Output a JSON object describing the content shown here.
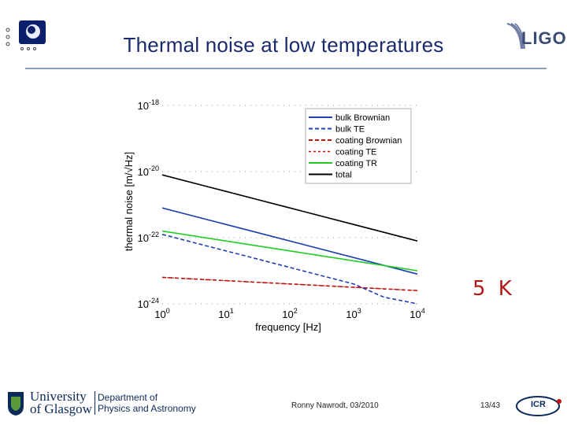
{
  "slide": {
    "title": "Thermal noise at low temperatures",
    "temperature_label": "5 K",
    "author_date": "Ronny Nawrodt, 03/2010",
    "page": "13/43"
  },
  "logos": {
    "ligo": "LIGO",
    "university_line1": "University",
    "university_line2": "of Glasgow",
    "department_line1": "Department of",
    "department_line2": "Physics and Astronomy",
    "icr": "ICR"
  },
  "colors": {
    "title": "#1a2a6c",
    "temperature": "#b01818",
    "bulk_brownian": "#1f3fb0",
    "bulk_te": "#1f3fb0",
    "coating_brownian": "#c01010",
    "coating_te": "#c01010",
    "coating_tr": "#22cc22",
    "total": "#000000"
  },
  "chart_data": {
    "type": "line",
    "xlabel": "frequency [Hz]",
    "ylabel": "thermal noise [m/√Hz]",
    "xscale": "log",
    "yscale": "log",
    "xlim": [
      1,
      10000
    ],
    "ylim_exp": [
      -24,
      -18
    ],
    "xticks": [
      {
        "base": "10",
        "exp": "0",
        "value": 1
      },
      {
        "base": "10",
        "exp": "1",
        "value": 10
      },
      {
        "base": "10",
        "exp": "2",
        "value": 100
      },
      {
        "base": "10",
        "exp": "3",
        "value": 1000
      },
      {
        "base": "10",
        "exp": "4",
        "value": 10000
      }
    ],
    "yticks": [
      {
        "base": "10",
        "exp": "-18",
        "value_exp": -18
      },
      {
        "base": "10",
        "exp": "-20",
        "value_exp": -20
      },
      {
        "base": "10",
        "exp": "-22",
        "value_exp": -22
      },
      {
        "base": "10",
        "exp": "-24",
        "value_exp": -24
      }
    ],
    "legend_position": "top-right",
    "grid": true,
    "series": [
      {
        "name": "bulk Brownian",
        "key": "bulk_brownian",
        "dash": "solid",
        "x": [
          1,
          10,
          100,
          1000,
          10000
        ],
        "y_exp": [
          -21.1,
          -21.6,
          -22.1,
          -22.6,
          -23.1
        ]
      },
      {
        "name": "bulk TE",
        "key": "bulk_te",
        "dash": "dashed",
        "x": [
          1,
          10,
          100,
          1000,
          3000,
          10000
        ],
        "y_exp": [
          -21.9,
          -22.4,
          -22.9,
          -23.4,
          -23.8,
          -24.0
        ]
      },
      {
        "name": "coating Brownian",
        "key": "coating_brownian",
        "dash": "dashed",
        "x": [
          1,
          10,
          100,
          1000,
          10000
        ],
        "y_exp": [
          -23.2,
          -23.3,
          -23.4,
          -23.5,
          -23.6
        ]
      },
      {
        "name": "coating TE",
        "key": "coating_te",
        "dash": "thin-dashed",
        "x": [
          1,
          10,
          100,
          1000,
          10000
        ],
        "y_exp": [
          -23.2,
          -23.3,
          -23.4,
          -23.5,
          -23.6
        ]
      },
      {
        "name": "coating TR",
        "key": "coating_tr",
        "dash": "solid",
        "x": [
          1,
          10,
          100,
          1000,
          10000
        ],
        "y_exp": [
          -21.8,
          -22.1,
          -22.4,
          -22.7,
          -23.0
        ]
      },
      {
        "name": "total",
        "key": "total",
        "dash": "solid",
        "x": [
          1,
          10,
          100,
          1000,
          10000
        ],
        "y_exp": [
          -20.1,
          -20.6,
          -21.1,
          -21.6,
          -22.1
        ]
      }
    ]
  }
}
